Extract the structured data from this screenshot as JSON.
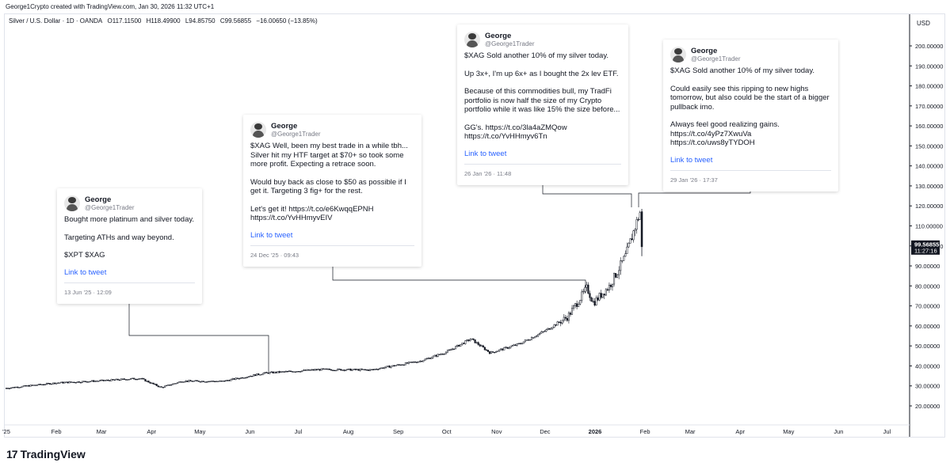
{
  "header": {
    "created_by": "George1Crypto created with TradingView.com, Jan 30, 2026 11:32 UTC+1"
  },
  "legend": {
    "symbol": "Silver / U.S. Dollar · 1D · OANDA",
    "open": "O117.11500",
    "high": "H118.49900",
    "low": "L94.85750",
    "close": "C99.56855",
    "change": "−16.00650 (−13.85%)"
  },
  "price_axis": {
    "currency": "USD",
    "last_price": "99.56855",
    "countdown": "11:27:16"
  },
  "chart_data": {
    "type": "candlestick",
    "symbol": "XAGUSD",
    "interval": "1D",
    "ylim": [
      12,
      205
    ],
    "y_ticks": [
      20,
      30,
      40,
      50,
      60,
      70,
      80,
      90,
      100,
      110,
      120,
      130,
      140,
      150,
      160,
      170,
      180,
      190,
      200
    ],
    "y_tick_labels": [
      "20.00000",
      "30.00000",
      "40.00000",
      "50.00000",
      "60.00000",
      "70.00000",
      "80.00000",
      "90.00000",
      "100.00000",
      "110.00000",
      "120.00000",
      "130.00000",
      "140.00000",
      "150.00000",
      "160.00000",
      "170.00000",
      "180.00000",
      "190.00000",
      "200.00000"
    ],
    "x_tick_labels": [
      "'25",
      "Feb",
      "Mar",
      "Apr",
      "May",
      "Jun",
      "Jul",
      "Aug",
      "Sep",
      "Oct",
      "Nov",
      "Dec",
      "2026",
      "Feb",
      "Mar",
      "Apr",
      "May",
      "Jun",
      "Jul"
    ],
    "grid": false,
    "price_points": [
      {
        "date": "2025-01-01",
        "price": 28.9
      },
      {
        "date": "2025-02-01",
        "price": 31.5
      },
      {
        "date": "2025-03-01",
        "price": 32.6
      },
      {
        "date": "2025-03-25",
        "price": 33.8
      },
      {
        "date": "2025-04-07",
        "price": 29.2
      },
      {
        "date": "2025-04-20",
        "price": 32.4
      },
      {
        "date": "2025-05-15",
        "price": 32.3
      },
      {
        "date": "2025-06-10",
        "price": 36.4
      },
      {
        "date": "2025-07-15",
        "price": 38.2
      },
      {
        "date": "2025-08-15",
        "price": 38.0
      },
      {
        "date": "2025-09-15",
        "price": 42.5
      },
      {
        "date": "2025-10-01",
        "price": 47.0
      },
      {
        "date": "2025-10-16",
        "price": 53.5
      },
      {
        "date": "2025-10-28",
        "price": 46.5
      },
      {
        "date": "2025-11-15",
        "price": 51.0
      },
      {
        "date": "2025-12-01",
        "price": 57.5
      },
      {
        "date": "2025-12-15",
        "price": 64.5
      },
      {
        "date": "2025-12-27",
        "price": 79.0
      },
      {
        "date": "2025-12-31",
        "price": 71.5
      },
      {
        "date": "2026-01-10",
        "price": 80.0
      },
      {
        "date": "2026-01-20",
        "price": 95.0
      },
      {
        "date": "2026-01-26",
        "price": 110.0
      },
      {
        "date": "2026-01-29",
        "price": 117.1
      },
      {
        "date": "2026-01-30",
        "price": 99.57
      }
    ],
    "last_candle": {
      "open": 117.115,
      "high": 118.499,
      "low": 94.8575,
      "close": 99.56855
    }
  },
  "tweets": [
    {
      "name": "George",
      "handle": "@George1Trader",
      "paragraphs": [
        "Bought more platinum and silver today.",
        "Targeting ATHs and way beyond.",
        "$XPT $XAG"
      ],
      "link": "Link to tweet",
      "date": "13 Jun '25 · 12:09"
    },
    {
      "name": "George",
      "handle": "@George1Trader",
      "paragraphs": [
        "$XAG Well, been my best trade in a while tbh... Silver hit my HTF target at $70+ so took some more profit. Expecting a retrace soon.",
        "Would buy back as close to $50 as possible if I get it. Targeting 3 fig+ for the rest.",
        "Let's get it! https://t.co/e6KwqqEPNH https://t.co/YvHHmyvEIV"
      ],
      "link": "Link to tweet",
      "date": "24 Dec '25 · 09:43"
    },
    {
      "name": "George",
      "handle": "@George1Trader",
      "paragraphs": [
        "$XAG Sold another 10% of my silver today.",
        "Up 3x+, I'm up 6x+ as I bought the 2x lev ETF.",
        "Because of this commodities bull, my TradFi portfolio is now half the size of my Crypto portfolio while it was like 15% the size before...",
        "GG's. https://t.co/3la4aZMQow https://t.co/YvHHmyv6Tn"
      ],
      "link": "Link to tweet",
      "date": "26 Jan '26 · 11:48"
    },
    {
      "name": "George",
      "handle": "@George1Trader",
      "paragraphs": [
        "$XAG Sold another 10% of my silver today.",
        "Could easily see this ripping to new highs tomorrow, but also could be the start of a bigger pullback imo.",
        "Always feel good realizing gains. https://t.co/4yPz7XwuVa https://t.co/uws8yTYDOH"
      ],
      "link": "Link to tweet",
      "date": "29 Jan '26 · 17:37"
    }
  ],
  "footer": {
    "brand": "TradingView",
    "logo_mark": "17"
  },
  "colors": {
    "candle": "#131722",
    "connector": "#131722",
    "link": "#2962ff",
    "price_label_bg": "#131722"
  }
}
